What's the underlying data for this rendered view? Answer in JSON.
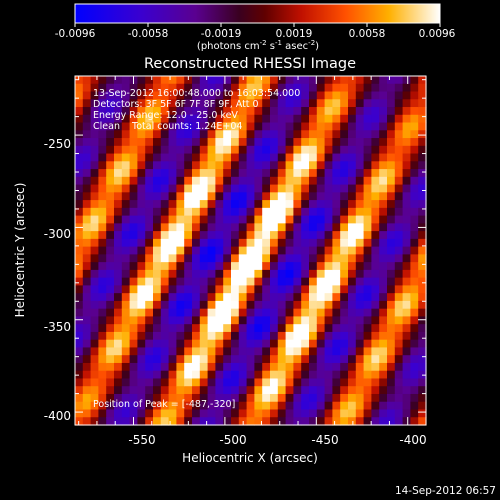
{
  "colorbar": {
    "ticks": [
      "-0.0096",
      "-0.0058",
      "-0.0019",
      "0.0019",
      "0.0058",
      "0.0096"
    ],
    "units": {
      "prefix": "(photons cm",
      "exp1": "-2",
      "mid1": " s",
      "exp2": "-1",
      "mid2": " asec",
      "exp3": "-2",
      "suffix": ")"
    }
  },
  "plot": {
    "title": "Reconstructed RHESSI Image",
    "xlabel": "Heliocentric X (arcsec)",
    "ylabel": "Heliocentric Y (arcsec)",
    "x_ticks": [
      "-550",
      "-500",
      "-450",
      "-400"
    ],
    "y_ticks": [
      "-250",
      "-300",
      "-350",
      "-400"
    ],
    "x_range": [
      -582,
      -390
    ],
    "y_range": [
      -407,
      -218
    ],
    "peak_position": [
      -487,
      -320
    ]
  },
  "annotations": {
    "line1": "13-Sep-2012 16:00:48.000 to 16:03:54.000",
    "line2": "Detectors: 3F 5F 6F 7F 8F 9F, Att 0",
    "line3": "Energy Range: 12.0 - 25.0 keV",
    "line4": "Clean    Total counts: 1.24E+04",
    "peak": "Position of Peak = [-487,-320]"
  },
  "footer": {
    "timestamp": "14-Sep-2012 06:57"
  }
}
